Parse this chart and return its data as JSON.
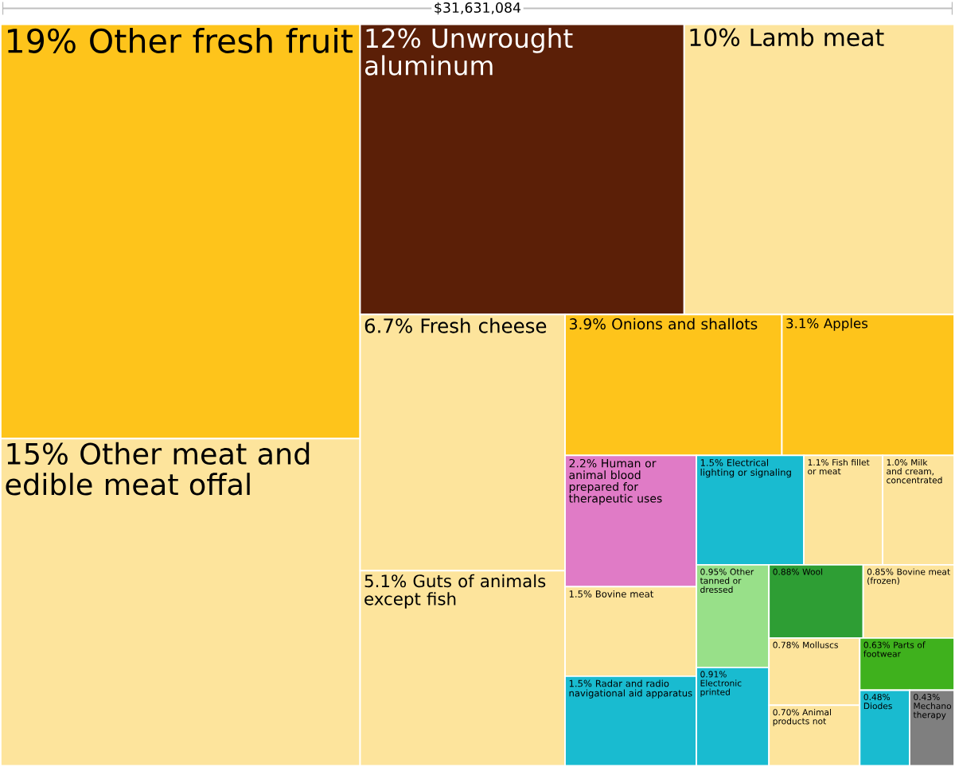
{
  "chart_data": {
    "type": "other",
    "title": "$31,631,084",
    "categories": [
      "Other fresh fruit",
      "Other meat and edible meat offal",
      "Unwrought aluminum",
      "Lamb meat",
      "Fresh cheese",
      "Guts of animals except fish",
      "Onions and shallots",
      "Apples",
      "Human or animal blood prepared for therapeutic uses",
      "Bovine meat",
      "Radar and radio navigational aid apparatus",
      "Electrical lighting or signaling",
      "Fish fillet or meat",
      "Milk and cream, concentrated",
      "Other tanned or dressed",
      "Electronic printed",
      "Wool",
      "Bovine meat (frozen)",
      "Molluscs",
      "Animal products not",
      "Parts of footwear",
      "Diodes",
      "Mechano therapy"
    ],
    "values": [
      19,
      15,
      12,
      10,
      6.7,
      5.1,
      3.9,
      3.1,
      2.2,
      1.5,
      1.5,
      1.5,
      1.1,
      1.0,
      0.95,
      0.91,
      0.88,
      0.85,
      0.78,
      0.7,
      0.63,
      0.48,
      0.43
    ],
    "value_labels": [
      "19%",
      "15%",
      "12%",
      "10%",
      "6.7%",
      "5.1%",
      "3.9%",
      "3.1%",
      "2.2%",
      "1.5%",
      "1.5%",
      "1.5%",
      "1.1%",
      "1.0%",
      "0.95%",
      "0.91%",
      "0.88%",
      "0.85%",
      "0.78%",
      "0.70%",
      "0.63%",
      "0.48%",
      "0.43%"
    ],
    "colors": [
      "#fec41b",
      "#fde49c",
      "#5b1f07",
      "#fde49c",
      "#fde49c",
      "#fde49c",
      "#fec41b",
      "#fec41b",
      "#e07bc6",
      "#fde49c",
      "#19bbd0",
      "#19bbd0",
      "#fde49c",
      "#fde49c",
      "#98e089",
      "#19bbd0",
      "#2e9e34",
      "#fde49c",
      "#fde49c",
      "#fde49c",
      "#3fb11d",
      "#19bbd0",
      "#7f7f7f"
    ]
  }
}
